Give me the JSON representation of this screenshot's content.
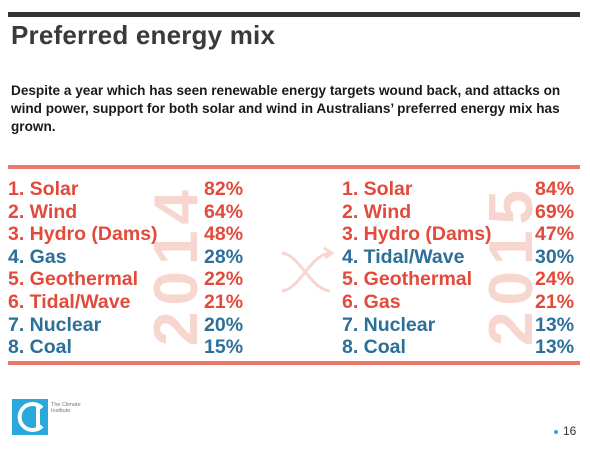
{
  "slide": {
    "title": "Preferred energy mix",
    "subtitle": "Despite a year which has seen renewable energy targets wound back, and attacks on wind power, support for both solar and wind in Australians’ preferred energy mix has grown.",
    "page_number": "16"
  },
  "colors": {
    "accent_red": "#e24a3b",
    "accent_blue": "#2c6f99",
    "rule_salmon": "#e8796c",
    "watermark": "#f7d6d0",
    "logo_blue": "#2aa8dc"
  },
  "left": {
    "year": "2014",
    "items": [
      {
        "name": "1. Solar",
        "pct": "82%",
        "color": "red"
      },
      {
        "name": "2. Wind",
        "pct": "64%",
        "color": "red"
      },
      {
        "name": "3. Hydro (Dams)",
        "pct": "48%",
        "color": "red"
      },
      {
        "name": "4. Gas",
        "pct": "28%",
        "color": "blue"
      },
      {
        "name": "5. Geothermal",
        "pct": "22%",
        "color": "red"
      },
      {
        "name": "6. Tidal/Wave",
        "pct": "21%",
        "color": "red"
      },
      {
        "name": "7. Nuclear",
        "pct": "20%",
        "color": "blue"
      },
      {
        "name": "8. Coal",
        "pct": "15%",
        "color": "blue"
      }
    ]
  },
  "right": {
    "year": "2015",
    "items": [
      {
        "name": "1. Solar",
        "pct": "84%",
        "color": "red"
      },
      {
        "name": "2. Wind",
        "pct": "69%",
        "color": "red"
      },
      {
        "name": "3. Hydro (Dams)",
        "pct": "47%",
        "color": "red"
      },
      {
        "name": "4. Tidal/Wave",
        "pct": "30%",
        "color": "blue"
      },
      {
        "name": "5. Geothermal",
        "pct": "24%",
        "color": "red"
      },
      {
        "name": "6. Gas",
        "pct": "21%",
        "color": "red"
      },
      {
        "name": "7. Nuclear",
        "pct": "13%",
        "color": "blue"
      },
      {
        "name": "8. Coal",
        "pct": "13%",
        "color": "blue"
      }
    ]
  },
  "logo": {
    "icon": "climate-institute-logo-icon",
    "text": "The Climate Institute"
  },
  "icons": {
    "swap": "swap-arrows-icon"
  }
}
